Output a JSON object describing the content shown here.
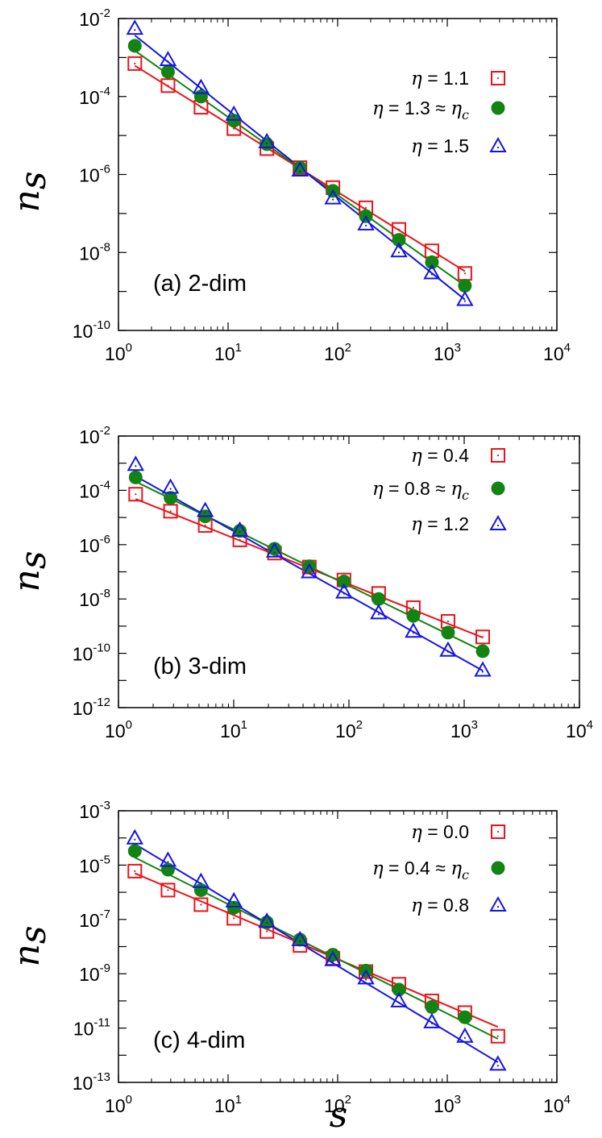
{
  "figure": {
    "xlabel": "s",
    "panels_ylabel": "n_s"
  },
  "chart_data": [
    {
      "type": "scatter",
      "annotation": "(a) 2-dim",
      "xlabel": "",
      "ylabel": "n_s",
      "xscale": "log",
      "yscale": "log",
      "xlim": [
        1,
        10000
      ],
      "ylim": [
        1e-10,
        0.01
      ],
      "x_ticks": [
        {
          "m": "10",
          "e": "0"
        },
        {
          "m": "10",
          "e": "1"
        },
        {
          "m": "10",
          "e": "2"
        },
        {
          "m": "10",
          "e": "3"
        },
        {
          "m": "10",
          "e": "4"
        }
      ],
      "y_ticks": [
        {
          "m": "10",
          "e": "-10"
        },
        {
          "m": "10",
          "e": "-8"
        },
        {
          "m": "10",
          "e": "-6"
        },
        {
          "m": "10",
          "e": "-4"
        },
        {
          "m": "10",
          "e": "-2"
        }
      ],
      "legend_position": "top-right",
      "series": [
        {
          "name": "η = 1.1",
          "eta": "η",
          "rest": " = 1.1",
          "sub": "",
          "marker": "square",
          "color": "#e8141b",
          "x": [
            1.41,
            2.83,
            5.66,
            11.3,
            22.6,
            45.3,
            90.5,
            181,
            362,
            724,
            1448
          ],
          "y": [
            0.0007,
            0.00019,
            5.3e-05,
            1.5e-05,
            4.6e-06,
            1.5e-06,
            4.6e-07,
            1.4e-07,
            3.9e-08,
            1.1e-08,
            2.9e-09
          ],
          "fit": [
            [
              1.41,
              0.00062
            ],
            [
              1448,
              3.3e-09
            ]
          ]
        },
        {
          "name": "η = 1.3 ≈ η_c",
          "eta": "η",
          "rest": " = 1.3 ≈ ",
          "sub": "c",
          "marker": "circle",
          "color": "#138313",
          "x": [
            1.41,
            2.83,
            5.66,
            11.3,
            22.6,
            45.3,
            90.5,
            181,
            362,
            724,
            1448
          ],
          "y": [
            0.002,
            0.00043,
            0.0001,
            2.4e-05,
            6e-06,
            1.5e-06,
            3.8e-07,
            8.5e-08,
            2.1e-08,
            5.6e-09,
            1.4e-09
          ],
          "fit": [
            [
              1.41,
              0.0015
            ],
            [
              1448,
              1.4e-09
            ]
          ]
        },
        {
          "name": "η = 1.5",
          "eta": "η",
          "rest": " = 1.5",
          "sub": "",
          "marker": "triangle",
          "color": "#1414e6",
          "x": [
            1.41,
            2.83,
            5.66,
            11.3,
            22.6,
            45.3,
            90.5,
            181,
            362,
            724,
            1448
          ],
          "y": [
            0.0056,
            0.00088,
            0.00017,
            3.5e-05,
            6.9e-06,
            1.3e-06,
            2.5e-07,
            5.4e-08,
            1.1e-08,
            3e-09,
            6.2e-10
          ],
          "fit": [
            [
              1.41,
              0.0037
            ],
            [
              1448,
              6.2e-10
            ]
          ]
        }
      ]
    },
    {
      "type": "scatter",
      "annotation": "(b) 3-dim",
      "xlabel": "",
      "ylabel": "n_s",
      "xscale": "log",
      "yscale": "log",
      "xlim": [
        1,
        10000
      ],
      "ylim": [
        1e-12,
        0.01
      ],
      "x_ticks": [
        {
          "m": "10",
          "e": "0"
        },
        {
          "m": "10",
          "e": "1"
        },
        {
          "m": "10",
          "e": "2"
        },
        {
          "m": "10",
          "e": "3"
        },
        {
          "m": "10",
          "e": "4"
        }
      ],
      "y_ticks": [
        {
          "m": "10",
          "e": "-12"
        },
        {
          "m": "10",
          "e": "-10"
        },
        {
          "m": "10",
          "e": "-8"
        },
        {
          "m": "10",
          "e": "-6"
        },
        {
          "m": "10",
          "e": "-4"
        },
        {
          "m": "10",
          "e": "-2"
        }
      ],
      "legend_position": "top-right",
      "series": [
        {
          "name": "η = 0.4",
          "eta": "η",
          "rest": " = 0.4",
          "sub": "",
          "marker": "square",
          "color": "#e8141b",
          "x": [
            1.41,
            2.83,
            5.66,
            11.3,
            22.6,
            45.3,
            90.5,
            181,
            362,
            724,
            1448
          ],
          "y": [
            7.2e-05,
            1.7e-05,
            5.1e-06,
            1.5e-06,
            4.9e-07,
            1.5e-07,
            5e-08,
            1.6e-08,
            4.8e-09,
            1.5e-09,
            4e-10
          ],
          "fit": [
            [
              1.41,
              4.8e-05
            ],
            [
              1448,
              3.8e-10
            ]
          ]
        },
        {
          "name": "η = 0.8 ≈ η_c",
          "eta": "η",
          "rest": " = 0.8 ≈ ",
          "sub": "c",
          "marker": "circle",
          "color": "#138313",
          "x": [
            1.41,
            2.83,
            5.66,
            11.3,
            22.6,
            45.3,
            90.5,
            181,
            362,
            724,
            1448
          ],
          "y": [
            0.0003,
            5.3e-05,
            1.1e-05,
            3.2e-06,
            7e-07,
            1.6e-07,
            4.4e-08,
            1e-08,
            2.4e-09,
            5.8e-10,
            1.2e-10
          ],
          "fit": [
            [
              1.41,
              0.00021
            ],
            [
              1448,
              1.2e-10
            ]
          ]
        },
        {
          "name": "η = 1.2",
          "eta": "η",
          "rest": " = 1.2",
          "sub": "",
          "marker": "triangle",
          "color": "#1414e6",
          "x": [
            1.41,
            2.83,
            5.66,
            11.3,
            22.6,
            45.3,
            90.5,
            181,
            362,
            724,
            1448
          ],
          "y": [
            0.0009,
            0.00013,
            1.8e-05,
            3.4e-06,
            5.8e-07,
            1e-07,
            1.8e-08,
            3.1e-09,
            6.5e-10,
            1.3e-10,
            2.4e-11
          ],
          "fit": [
            [
              1.41,
              0.00033
            ],
            [
              1448,
              2.3e-11
            ]
          ]
        }
      ]
    },
    {
      "type": "scatter",
      "annotation": "(c) 4-dim",
      "xlabel": "s",
      "ylabel": "n_s",
      "xscale": "log",
      "yscale": "log",
      "xlim": [
        1,
        10000
      ],
      "ylim": [
        1e-13,
        0.001
      ],
      "x_ticks": [
        {
          "m": "10",
          "e": "0"
        },
        {
          "m": "10",
          "e": "1"
        },
        {
          "m": "10",
          "e": "2"
        },
        {
          "m": "10",
          "e": "3"
        },
        {
          "m": "10",
          "e": "4"
        }
      ],
      "y_ticks": [
        {
          "m": "10",
          "e": "-13"
        },
        {
          "m": "10",
          "e": "-11"
        },
        {
          "m": "10",
          "e": "-9"
        },
        {
          "m": "10",
          "e": "-7"
        },
        {
          "m": "10",
          "e": "-5"
        },
        {
          "m": "10",
          "e": "-3"
        }
      ],
      "legend_position": "top-right",
      "series": [
        {
          "name": "η = 0.0",
          "eta": "η",
          "rest": " = 0.0",
          "sub": "",
          "marker": "square",
          "color": "#e8141b",
          "x": [
            1.41,
            2.83,
            5.66,
            11.3,
            22.6,
            45.3,
            90.5,
            181,
            362,
            724,
            1448,
            2896
          ],
          "y": [
            6e-06,
            1.2e-06,
            3.5e-07,
            1.1e-07,
            3.6e-08,
            1.1e-08,
            3.7e-09,
            1.2e-09,
            4.1e-10,
            1e-10,
            3.7e-11,
            5e-12
          ],
          "fit": [
            [
              1.41,
              5e-06
            ],
            [
              2896,
              1.1e-11
            ]
          ]
        },
        {
          "name": "η = 0.4 ≈ η_c",
          "eta": "η",
          "rest": " = 0.4 ≈ ",
          "sub": "c",
          "marker": "circle",
          "color": "#138313",
          "x": [
            1.41,
            2.83,
            5.66,
            11.3,
            22.6,
            45.3,
            90.5,
            181,
            362,
            724,
            1448
          ],
          "y": [
            3.3e-05,
            6.8e-06,
            1.2e-06,
            2.7e-07,
            7.8e-08,
            1.8e-08,
            5e-09,
            1.3e-09,
            2.6e-10,
            6e-11,
            2.5e-11
          ],
          "fit": [
            [
              1.41,
              1.9e-05
            ],
            [
              2896,
              4e-12
            ]
          ]
        },
        {
          "name": "η = 0.8",
          "eta": "η",
          "rest": " = 0.8",
          "sub": "",
          "marker": "triangle",
          "color": "#1414e6",
          "x": [
            1.41,
            2.83,
            5.66,
            11.3,
            22.6,
            45.3,
            90.5,
            181,
            362,
            724,
            1448,
            2896
          ],
          "y": [
            0.0001,
            1.5e-05,
            2.5e-06,
            4.8e-07,
            8.5e-08,
            1.8e-08,
            3.3e-09,
            7e-10,
            1e-10,
            1.7e-11,
            5e-12,
            4.7e-13
          ],
          "fit": [
            [
              1.41,
              6e-05
            ],
            [
              2896,
              5.5e-13
            ]
          ]
        }
      ]
    }
  ]
}
